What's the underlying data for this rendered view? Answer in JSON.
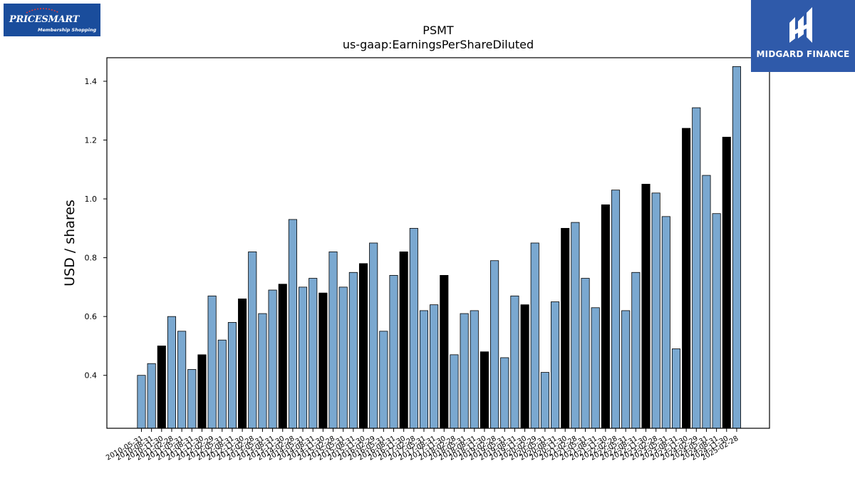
{
  "logos": {
    "left": {
      "brand": "PRICESMART",
      "tagline": "Membership Shopping"
    },
    "right": {
      "name": "MIDGARD FINANCE"
    }
  },
  "colors": {
    "bar_default": "#7aa8d0",
    "bar_highlight": "#000000",
    "edge": "#000000"
  },
  "chart_data": {
    "type": "bar",
    "title": "PSMT",
    "subtitle": "us-gaap:EarningsPerShareDiluted",
    "ylabel": "USD / shares",
    "xlabel": "",
    "ylim": [
      0.22,
      1.48
    ],
    "yticks": [
      0.4,
      0.6,
      0.8,
      1.0,
      1.2,
      1.4
    ],
    "ytick_labels": [
      "0.4",
      "0.6",
      "0.8",
      "1.0",
      "1.2",
      "1.4"
    ],
    "grid": false,
    "categories": [
      "2010-05-31",
      "2010-08-31",
      "2010-11-30",
      "2011-02-28",
      "2011-05-31",
      "2011-08-31",
      "2011-11-30",
      "2012-02-29",
      "2012-05-31",
      "2012-08-31",
      "2012-11-30",
      "2013-02-28",
      "2013-05-31",
      "2013-08-31",
      "2013-11-30",
      "2014-02-28",
      "2014-05-31",
      "2014-08-31",
      "2014-11-30",
      "2015-02-28",
      "2015-05-31",
      "2015-08-31",
      "2015-11-30",
      "2016-02-29",
      "2016-05-31",
      "2016-08-31",
      "2016-11-30",
      "2017-02-28",
      "2017-05-31",
      "2017-08-31",
      "2017-11-30",
      "2018-02-28",
      "2018-05-31",
      "2018-08-31",
      "2018-11-30",
      "2019-02-28",
      "2019-05-31",
      "2019-08-31",
      "2019-11-30",
      "2020-02-29",
      "2020-05-31",
      "2020-08-31",
      "2020-11-30",
      "2021-02-28",
      "2021-05-31",
      "2021-08-31",
      "2021-11-30",
      "2022-02-28",
      "2022-05-31",
      "2022-08-31",
      "2022-11-30",
      "2023-02-28",
      "2023-05-31",
      "2023-08-31",
      "2023-11-30",
      "2024-02-29",
      "2024-05-31",
      "2024-08-31",
      "2024-11-30",
      "2025-02-28"
    ],
    "values": [
      0.4,
      0.44,
      0.5,
      0.6,
      0.55,
      0.42,
      0.47,
      0.67,
      0.52,
      0.58,
      0.66,
      0.82,
      0.61,
      0.69,
      0.71,
      0.93,
      0.7,
      0.73,
      0.68,
      0.82,
      0.7,
      0.75,
      0.78,
      0.85,
      0.55,
      0.74,
      0.82,
      0.9,
      0.62,
      0.64,
      0.74,
      0.47,
      0.61,
      0.62,
      0.48,
      0.79,
      0.46,
      0.67,
      0.64,
      0.85,
      0.41,
      0.65,
      0.9,
      0.92,
      0.73,
      0.63,
      0.98,
      1.03,
      0.62,
      0.75,
      1.05,
      1.02,
      0.94,
      0.49,
      1.24,
      1.31,
      1.08,
      0.95,
      1.21,
      1.45
    ],
    "highlight_indices": [
      2,
      6,
      10,
      14,
      18,
      22,
      26,
      30,
      34,
      38,
      42,
      46,
      50,
      54,
      58
    ]
  }
}
